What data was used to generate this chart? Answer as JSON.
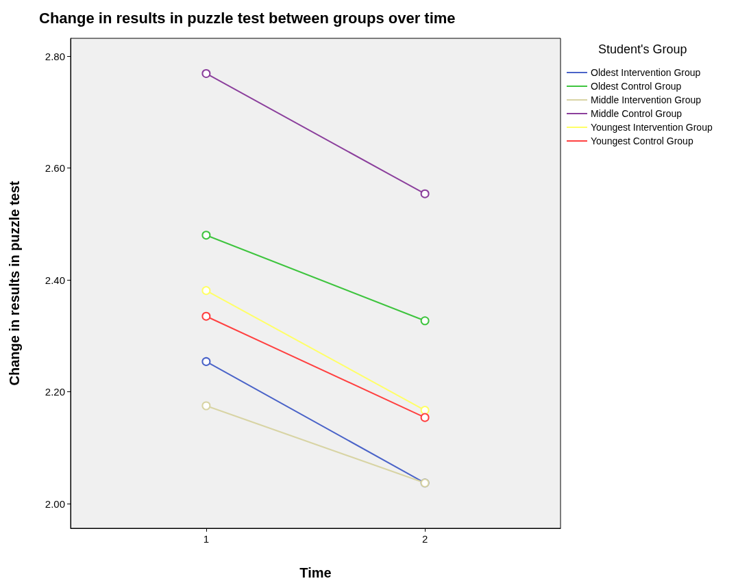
{
  "chart_data": {
    "type": "line",
    "title": "Change in results in puzzle test between groups over time",
    "xlabel": "Time",
    "ylabel": "Change in results in puzzle test",
    "legend_title": "Student's Group",
    "x": [
      1,
      2
    ],
    "xlim": [
      0.38,
      2.62
    ],
    "xticks": [
      1,
      2
    ],
    "ylim": [
      1.956,
      2.832
    ],
    "yticks": [
      {
        "value": 2.0,
        "label": "2.00"
      },
      {
        "value": 2.2,
        "label": "2.20"
      },
      {
        "value": 2.4,
        "label": "2.40"
      },
      {
        "value": 2.6,
        "label": "2.60"
      },
      {
        "value": 2.8,
        "label": "2.80"
      }
    ],
    "grid": false,
    "legend": "right",
    "marker": "circle",
    "line_style": "solid",
    "series": [
      {
        "name": "Oldest Intervention Group",
        "color": "#4a63c8",
        "values": [
          2.254,
          2.037
        ]
      },
      {
        "name": "Oldest Control Group",
        "color": "#3ec43e",
        "values": [
          2.48,
          2.327
        ]
      },
      {
        "name": "Middle Intervention Group",
        "color": "#d8d4a4",
        "values": [
          2.175,
          2.037
        ]
      },
      {
        "name": "Middle Control Group",
        "color": "#8b3f9c",
        "values": [
          2.769,
          2.554
        ]
      },
      {
        "name": "Youngest Intervention Group",
        "color": "#ffff66",
        "values": [
          2.381,
          2.167
        ]
      },
      {
        "name": "Youngest Control Group",
        "color": "#ff4040",
        "values": [
          2.335,
          2.154
        ]
      }
    ]
  }
}
